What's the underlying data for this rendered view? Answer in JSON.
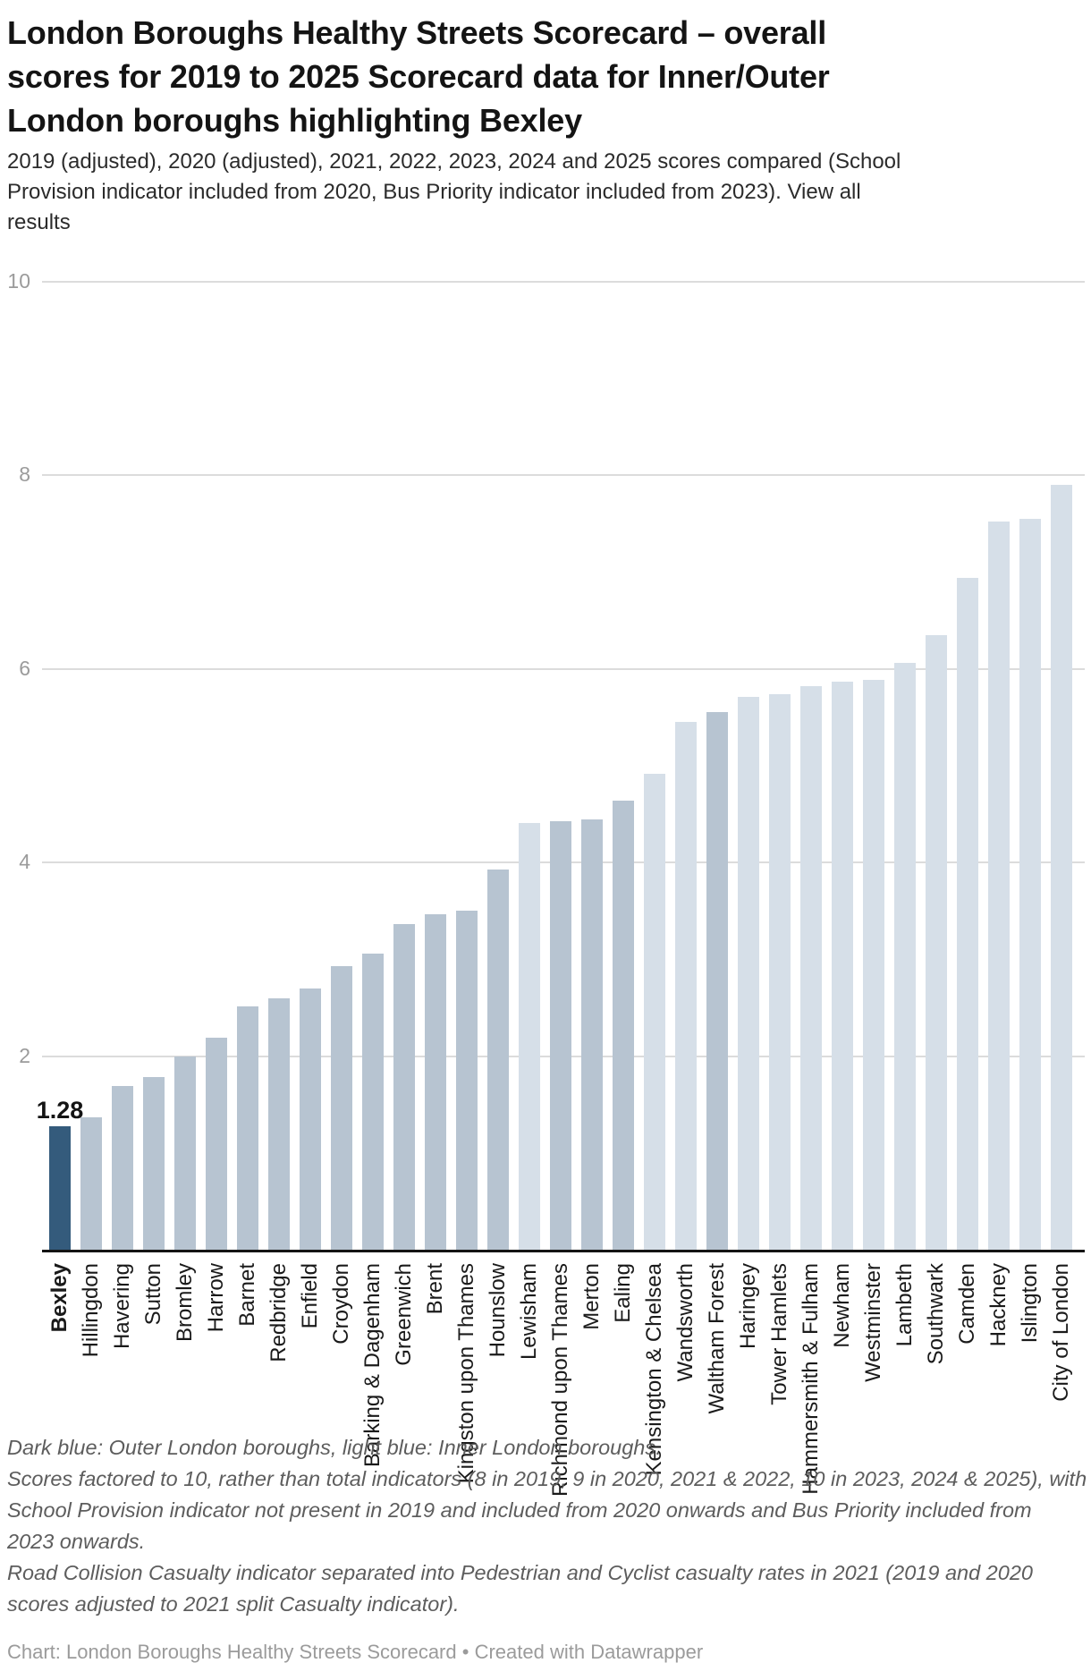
{
  "header": {
    "title_lines": [
      "London Boroughs Healthy Streets Scorecard – overall",
      "scores for 2019 to 2025 Scorecard data for Inner/Outer",
      "London boroughs highlighting Bexley"
    ],
    "subtitle_line1": "2019 (adjusted), 2020 (adjusted), 2021, 2022, 2023, 2024 and 2025 scores compared (School",
    "subtitle_line2_main": "Provision indicator included from 2020, Bus Priority indicator included from 2023). ",
    "subtitle_line2_link": "View all",
    "subtitle_line3_link": "results"
  },
  "annotations": {
    "bexley_value": "1.28"
  },
  "chart_data": {
    "type": "bar",
    "title": "London Boroughs Healthy Streets Scorecard – overall scores for 2019 to 2025 Scorecard data for Inner/Outer London boroughs highlighting Bexley",
    "categories": [
      "Bexley",
      "Hillingdon",
      "Havering",
      "Sutton",
      "Bromley",
      "Harrow",
      "Barnet",
      "Redbridge",
      "Enfield",
      "Croydon",
      "Barking & Dagenham",
      "Greenwich",
      "Brent",
      "Kingston upon Thames",
      "Hounslow",
      "Lewisham",
      "Richmond upon Thames",
      "Merton",
      "Ealing",
      "Kensington & Chelsea",
      "Wandsworth",
      "Waltham Forest",
      "Haringey",
      "Tower Hamlets",
      "Hammersmith & Fulham",
      "Newham",
      "Westminster",
      "Lambeth",
      "Southwark",
      "Camden",
      "Hackney",
      "Islington",
      "City of London"
    ],
    "values": [
      1.28,
      1.37,
      1.69,
      1.78,
      2.0,
      2.19,
      2.51,
      2.6,
      2.7,
      2.93,
      3.06,
      3.36,
      3.47,
      3.5,
      3.93,
      4.41,
      4.43,
      4.45,
      4.64,
      4.92,
      5.45,
      5.55,
      5.71,
      5.74,
      5.82,
      5.87,
      5.89,
      6.06,
      6.35,
      6.94,
      7.52,
      7.55,
      7.9
    ],
    "groups": [
      "highlight",
      "outer",
      "outer",
      "outer",
      "outer",
      "outer",
      "outer",
      "outer",
      "outer",
      "outer",
      "outer",
      "outer",
      "outer",
      "outer",
      "outer",
      "inner",
      "outer",
      "outer",
      "outer",
      "inner",
      "inner",
      "outer",
      "inner",
      "inner",
      "inner",
      "inner",
      "inner",
      "inner",
      "inner",
      "inner",
      "inner",
      "inner",
      "inner"
    ],
    "highlighted_category": "Bexley",
    "data_label": {
      "category": "Bexley",
      "text": "1.28"
    },
    "xlabel": "",
    "ylabel": "",
    "ylim": [
      0,
      10
    ],
    "y_ticks": [
      2,
      4,
      6,
      8,
      10
    ],
    "grid": true,
    "legend_position": "none",
    "bar_colors": {
      "highlight": "#345b7c",
      "outer": "#b7c4d1",
      "inner": "#d6dfe8"
    }
  },
  "colors": {
    "accent_dark_blue": "#345b7c",
    "outer_borough_blue": "#b7c4d1",
    "inner_borough_blue": "#d6dfe8",
    "gridline": "#dcdcdc",
    "axis_line": "#141414",
    "tick_text": "#9b9b9b"
  },
  "footer": {
    "footnote_lines": [
      "Dark blue: Outer London boroughs, light blue: Inner London boroughs.",
      "Scores factored to 10, rather than total indicators (8 in 2019, 9 in 2020, 2021 & 2022, 10 in 2023, 2024 & 2025), with",
      "School Provision indicator not present in 2019 and included from 2020 onwards and Bus Priority included from",
      "2023 onwards.",
      "Road Collision Casualty indicator separated into Pedestrian and Cyclist casualty rates in 2021 (2019 and 2020",
      "scores adjusted to 2021 split Casualty indicator)."
    ],
    "attribution_chart": "Chart: London Boroughs Healthy Streets Scorecard",
    "attribution_separator": "•",
    "attribution_created": "Created with Datawrapper"
  }
}
